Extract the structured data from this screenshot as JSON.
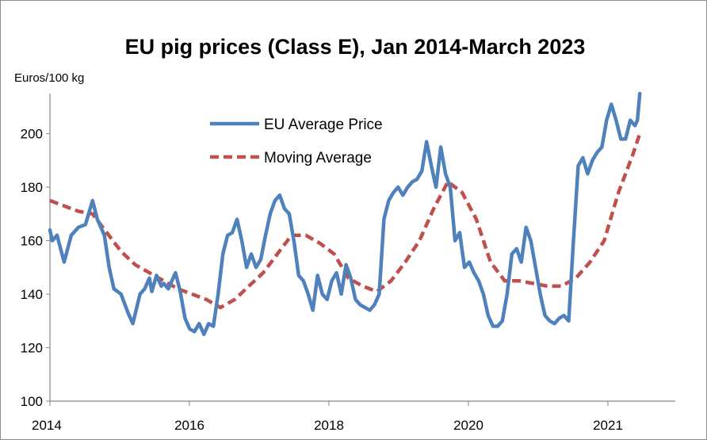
{
  "chart_data": {
    "type": "line",
    "title": "EU pig prices (Class E), Jan 2014-March 2023",
    "ylabel": "Euros/100 kg",
    "xlabel": "",
    "ylim": [
      100,
      215
    ],
    "y_ticks": [
      "100",
      "120",
      "140",
      "160",
      "180",
      "200"
    ],
    "x_ticks": [
      "2014",
      "2016",
      "2018",
      "2020",
      "2021"
    ],
    "grid": false,
    "legend_position": "top-center",
    "series": [
      {
        "name": "EU Average Price",
        "color": "#4f81bd",
        "style": "solid",
        "points": [
          [
            0,
            164
          ],
          [
            1,
            160
          ],
          [
            3,
            162
          ],
          [
            6,
            152
          ],
          [
            9,
            162
          ],
          [
            12,
            165
          ],
          [
            15,
            166
          ],
          [
            18,
            175
          ],
          [
            20,
            168
          ],
          [
            23,
            162
          ],
          [
            25,
            150
          ],
          [
            27,
            142
          ],
          [
            30,
            140
          ],
          [
            33,
            133
          ],
          [
            35,
            129
          ],
          [
            38,
            140
          ],
          [
            40,
            142
          ],
          [
            42,
            146
          ],
          [
            43,
            141
          ],
          [
            45,
            147
          ],
          [
            47,
            143
          ],
          [
            48,
            144
          ],
          [
            50,
            142
          ],
          [
            52,
            146
          ],
          [
            53,
            148
          ],
          [
            55,
            141
          ],
          [
            57,
            131
          ],
          [
            59,
            127
          ],
          [
            61,
            126
          ],
          [
            63,
            129
          ],
          [
            65,
            125
          ],
          [
            67,
            129
          ],
          [
            69,
            128
          ],
          [
            71,
            140
          ],
          [
            73,
            155
          ],
          [
            75,
            162
          ],
          [
            77,
            163
          ],
          [
            79,
            168
          ],
          [
            81,
            160
          ],
          [
            83,
            150
          ],
          [
            85,
            155
          ],
          [
            87,
            150
          ],
          [
            89,
            153
          ],
          [
            91,
            162
          ],
          [
            93,
            170
          ],
          [
            95,
            175
          ],
          [
            97,
            177
          ],
          [
            99,
            172
          ],
          [
            101,
            170
          ],
          [
            103,
            160
          ],
          [
            105,
            147
          ],
          [
            107,
            145
          ],
          [
            109,
            140
          ],
          [
            111,
            134
          ],
          [
            113,
            147
          ],
          [
            115,
            140
          ],
          [
            117,
            138
          ],
          [
            119,
            145
          ],
          [
            121,
            148
          ],
          [
            123,
            140
          ],
          [
            125,
            151
          ],
          [
            127,
            146
          ],
          [
            129,
            138
          ],
          [
            131,
            136
          ],
          [
            133,
            135
          ],
          [
            135,
            134
          ],
          [
            137,
            136
          ],
          [
            139,
            140
          ],
          [
            141,
            168
          ],
          [
            143,
            175
          ],
          [
            145,
            178
          ],
          [
            147,
            180
          ],
          [
            149,
            177
          ],
          [
            151,
            180
          ],
          [
            153,
            182
          ],
          [
            155,
            183
          ],
          [
            157,
            186
          ],
          [
            159,
            197
          ],
          [
            161,
            188
          ],
          [
            163,
            180
          ],
          [
            165,
            195
          ],
          [
            167,
            185
          ],
          [
            169,
            180
          ],
          [
            171,
            160
          ],
          [
            173,
            163
          ],
          [
            175,
            150
          ],
          [
            177,
            152
          ],
          [
            179,
            148
          ],
          [
            181,
            145
          ],
          [
            183,
            140
          ],
          [
            185,
            132
          ],
          [
            187,
            128
          ],
          [
            189,
            128
          ],
          [
            191,
            130
          ],
          [
            193,
            140
          ],
          [
            195,
            155
          ],
          [
            197,
            157
          ],
          [
            199,
            152
          ],
          [
            201,
            165
          ],
          [
            203,
            160
          ],
          [
            205,
            150
          ],
          [
            207,
            140
          ],
          [
            209,
            132
          ],
          [
            211,
            130
          ],
          [
            213,
            129
          ],
          [
            215,
            131
          ],
          [
            217,
            132
          ],
          [
            219,
            130
          ],
          [
            221,
            160
          ],
          [
            223,
            188
          ],
          [
            225,
            191
          ],
          [
            227,
            185
          ],
          [
            229,
            190
          ],
          [
            231,
            193
          ],
          [
            233,
            195
          ],
          [
            235,
            205
          ],
          [
            237,
            211
          ],
          [
            239,
            205
          ],
          [
            241,
            198
          ],
          [
            243,
            198
          ],
          [
            245,
            205
          ],
          [
            247,
            203
          ],
          [
            248,
            205
          ],
          [
            249,
            215
          ]
        ]
      },
      {
        "name": "Moving Average",
        "color": "#c0504d",
        "style": "dashed",
        "points": [
          [
            0,
            175
          ],
          [
            6,
            173
          ],
          [
            12,
            171
          ],
          [
            18,
            170
          ],
          [
            24,
            163
          ],
          [
            30,
            156
          ],
          [
            36,
            151
          ],
          [
            42,
            148
          ],
          [
            48,
            145
          ],
          [
            54,
            142
          ],
          [
            60,
            140
          ],
          [
            66,
            138
          ],
          [
            72,
            135
          ],
          [
            78,
            138
          ],
          [
            84,
            143
          ],
          [
            90,
            148
          ],
          [
            96,
            155
          ],
          [
            102,
            162
          ],
          [
            108,
            162
          ],
          [
            114,
            159
          ],
          [
            120,
            155
          ],
          [
            126,
            146
          ],
          [
            132,
            143
          ],
          [
            138,
            141
          ],
          [
            144,
            145
          ],
          [
            150,
            152
          ],
          [
            156,
            160
          ],
          [
            162,
            172
          ],
          [
            168,
            182
          ],
          [
            174,
            178
          ],
          [
            180,
            168
          ],
          [
            186,
            152
          ],
          [
            192,
            145
          ],
          [
            198,
            145
          ],
          [
            204,
            144
          ],
          [
            210,
            143
          ],
          [
            216,
            143
          ],
          [
            222,
            146
          ],
          [
            228,
            152
          ],
          [
            234,
            160
          ],
          [
            240,
            178
          ],
          [
            246,
            192
          ],
          [
            249,
            200
          ]
        ]
      }
    ]
  }
}
